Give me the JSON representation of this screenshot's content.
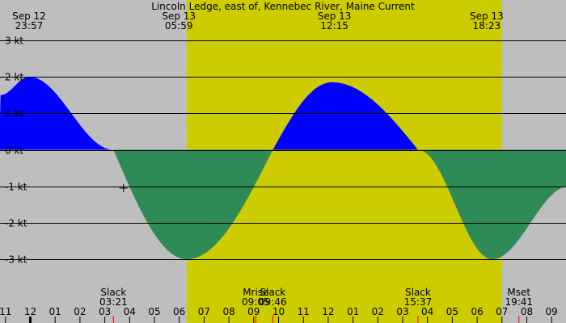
{
  "chart_data": {
    "type": "area",
    "title": "Lincoln Ledge, east of, Kennebec River, Maine Current",
    "ylabel": "",
    "xlabel": "",
    "ylim": [
      -3.45,
      3.0
    ],
    "y_ticks": [
      {
        "value": 3,
        "label": "3 kt"
      },
      {
        "value": 2,
        "label": "2 kt"
      },
      {
        "value": 1,
        "label": "1 kt"
      },
      {
        "value": 0,
        "label": "0 kt"
      },
      {
        "value": -1,
        "label": "-1 kt"
      },
      {
        "value": -2,
        "label": "-2 kt"
      },
      {
        "value": -3,
        "label": "-3 kt"
      }
    ],
    "x_hour_ticks": [
      {
        "h": -1,
        "label": "11"
      },
      {
        "h": 0,
        "label": "12"
      },
      {
        "h": 1,
        "label": "01"
      },
      {
        "h": 2,
        "label": "02"
      },
      {
        "h": 3,
        "label": "03"
      },
      {
        "h": 4,
        "label": "04"
      },
      {
        "h": 5,
        "label": "05"
      },
      {
        "h": 6,
        "label": "06"
      },
      {
        "h": 7,
        "label": "07"
      },
      {
        "h": 8,
        "label": "08"
      },
      {
        "h": 9,
        "label": "09"
      },
      {
        "h": 10,
        "label": "10"
      },
      {
        "h": 11,
        "label": "11"
      },
      {
        "h": 12,
        "label": "12"
      },
      {
        "h": 13,
        "label": "01"
      },
      {
        "h": 14,
        "label": "02"
      },
      {
        "h": 15,
        "label": "03"
      },
      {
        "h": 16,
        "label": "04"
      },
      {
        "h": 17,
        "label": "05"
      },
      {
        "h": 18,
        "label": "06"
      },
      {
        "h": 19,
        "label": "07"
      },
      {
        "h": 20,
        "label": "08"
      },
      {
        "h": 21,
        "label": "09"
      }
    ],
    "daylight": {
      "start_h": 6.3,
      "end_h": 19.0
    },
    "top_labels": [
      {
        "h": -0.05,
        "date": "Sep 12",
        "time": "23:57"
      },
      {
        "h": 5.983,
        "date": "Sep 13",
        "time": "05:59"
      },
      {
        "h": 12.25,
        "date": "Sep 13",
        "time": "12:15"
      },
      {
        "h": 18.383,
        "date": "Sep 13",
        "time": "18:23"
      }
    ],
    "events": [
      {
        "h": 3.35,
        "name": "Slack",
        "time": "03:21"
      },
      {
        "h": 9.083,
        "name": "Mrise",
        "time": "09:05"
      },
      {
        "h": 9.767,
        "name": "Slack",
        "time": "09:46"
      },
      {
        "h": 15.617,
        "name": "Slack",
        "time": "15:37"
      },
      {
        "h": 19.683,
        "name": "Mset",
        "time": "19:41"
      }
    ],
    "series": [
      {
        "name": "current",
        "x": [
          -1.2,
          -0.05,
          3.35,
          6.3,
          9.767,
          12.15,
          15.617,
          18.6,
          21.7
        ],
        "y": [
          1.5,
          2.0,
          0,
          -3.0,
          0,
          1.85,
          0,
          -3.0,
          -1.0
        ]
      }
    ],
    "colors": {
      "flood": "#0000ff",
      "ebb": "#2e8b57",
      "day": "#cccc00",
      "night": "#bebebe"
    },
    "cursor": {
      "h": 3.75,
      "y": -1.05
    }
  }
}
